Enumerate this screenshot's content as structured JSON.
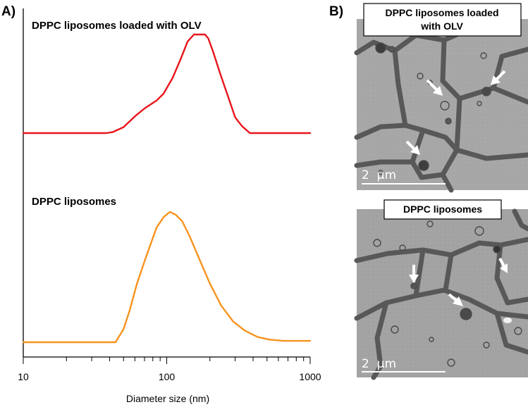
{
  "panel_a": {
    "letter": "A)"
  },
  "panel_b": {
    "letter": "B)",
    "images": [
      {
        "title_lines": [
          "DPPC liposomes loaded",
          "with OLV"
        ],
        "scale_label": "2  µm"
      },
      {
        "title_lines": [
          "DPPC liposomes"
        ],
        "scale_label": "2  µm"
      }
    ]
  },
  "colors": {
    "loaded_series": "#e8151b",
    "empty_series": "#f7931e",
    "axis": "#000000",
    "micrograph_background": "#a3a3a3",
    "micrograph_border": "#555555",
    "arrow": "#ffffff"
  },
  "chart_data": {
    "type": "line",
    "title": "",
    "xlabel": "Diameter size (nm)",
    "ylabel": "",
    "x_scale": "log",
    "xlim": [
      10,
      1000
    ],
    "x_tick_labels": [
      "10",
      "100",
      "1000"
    ],
    "grid": false,
    "y_ticks_shown": false,
    "note_layout": "stacked",
    "series": [
      {
        "name": "DPPC liposomes loaded with OLV",
        "color": "#e8151b",
        "x": [
          10,
          38,
          42,
          50,
          60,
          70,
          85,
          95,
          110,
          125,
          140,
          155,
          170,
          185,
          195,
          210,
          235,
          265,
          300,
          335,
          380,
          400,
          1000
        ],
        "y": [
          0,
          0,
          1,
          6,
          17,
          25,
          33,
          40,
          56,
          75,
          93,
          100,
          100,
          100,
          96,
          83,
          61,
          39,
          16,
          7,
          0,
          0,
          0
        ]
      },
      {
        "name": "DPPC liposomes",
        "color": "#f7931e",
        "x": [
          10,
          44,
          50,
          55,
          62,
          72,
          85,
          95,
          105,
          115,
          128,
          145,
          170,
          200,
          240,
          290,
          350,
          430,
          520,
          650,
          1000
        ],
        "y": [
          0,
          0,
          10,
          24,
          45,
          66,
          88,
          96,
          100,
          98,
          93,
          81,
          63,
          45,
          28,
          16,
          9,
          4,
          2,
          1,
          1
        ]
      }
    ]
  }
}
